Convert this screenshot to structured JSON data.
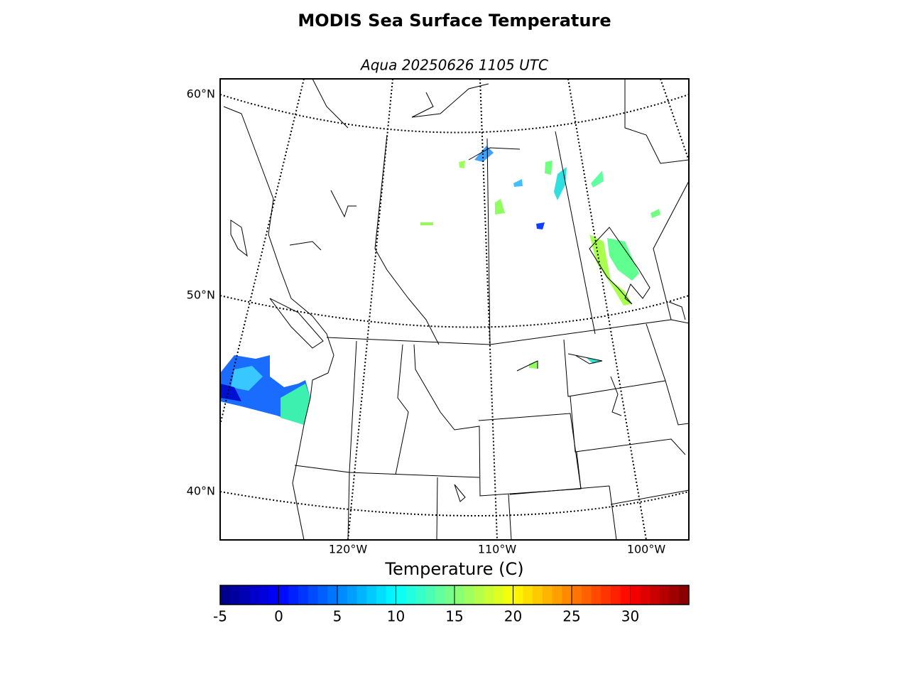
{
  "title": "MODIS Sea Surface Temperature",
  "subtitle": "Aqua 20250626 1105 UTC",
  "map": {
    "lat_labels": [
      "60°N",
      "50°N",
      "40°N"
    ],
    "lon_labels": [
      "120°W",
      "110°W",
      "100°W"
    ]
  },
  "colorbar": {
    "label": "Temperature (C)",
    "colormap": "jet",
    "lim": [
      -5,
      35
    ],
    "ticks": [
      -5,
      0,
      5,
      10,
      15,
      20,
      25,
      30
    ]
  }
}
